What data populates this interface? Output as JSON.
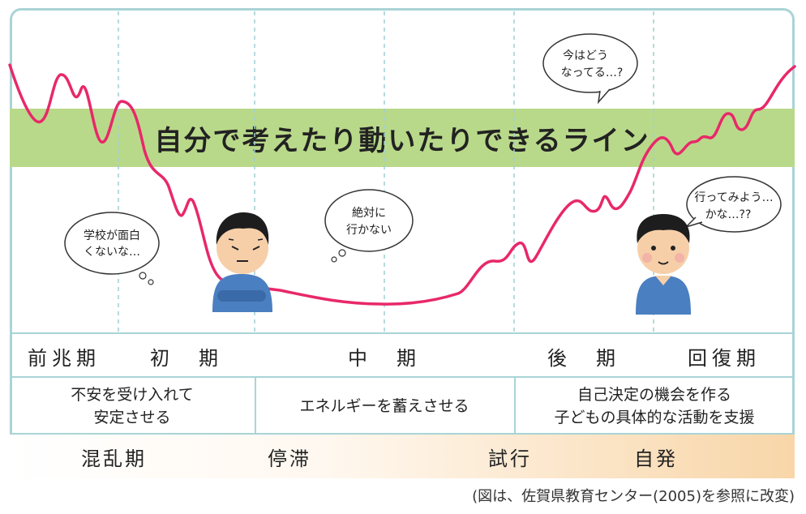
{
  "line_label": "自分で考えたり動いたりできるライン",
  "bubbles": {
    "school": [
      "学校が面白",
      "くないな…"
    ],
    "absolutely": [
      "絶対に",
      "行かない"
    ],
    "now": [
      "今はどう",
      "なってる…?"
    ],
    "try": [
      "行ってみよう…",
      "かな…??"
    ]
  },
  "phases": [
    "前兆期",
    "初　期",
    "中　期",
    "後　期",
    "回復期"
  ],
  "support": {
    "early": [
      "不安を受け入れて",
      "安定させる"
    ],
    "middle": [
      "エネルギーを蓄えさせる"
    ],
    "late": [
      "自己決定の機会を作る",
      "子どもの具体的な活動を支援"
    ]
  },
  "states": [
    "混乱期",
    "停滞",
    "試行",
    "自発"
  ],
  "credit": "(図は、佐賀県教育センター(2005)を参照に改変)",
  "colors": {
    "line": "#e8286a",
    "band": "#b9d98a",
    "border": "#a9d4d6",
    "dashed": "#9fcfd1",
    "shirt": "#4a7fc1"
  }
}
